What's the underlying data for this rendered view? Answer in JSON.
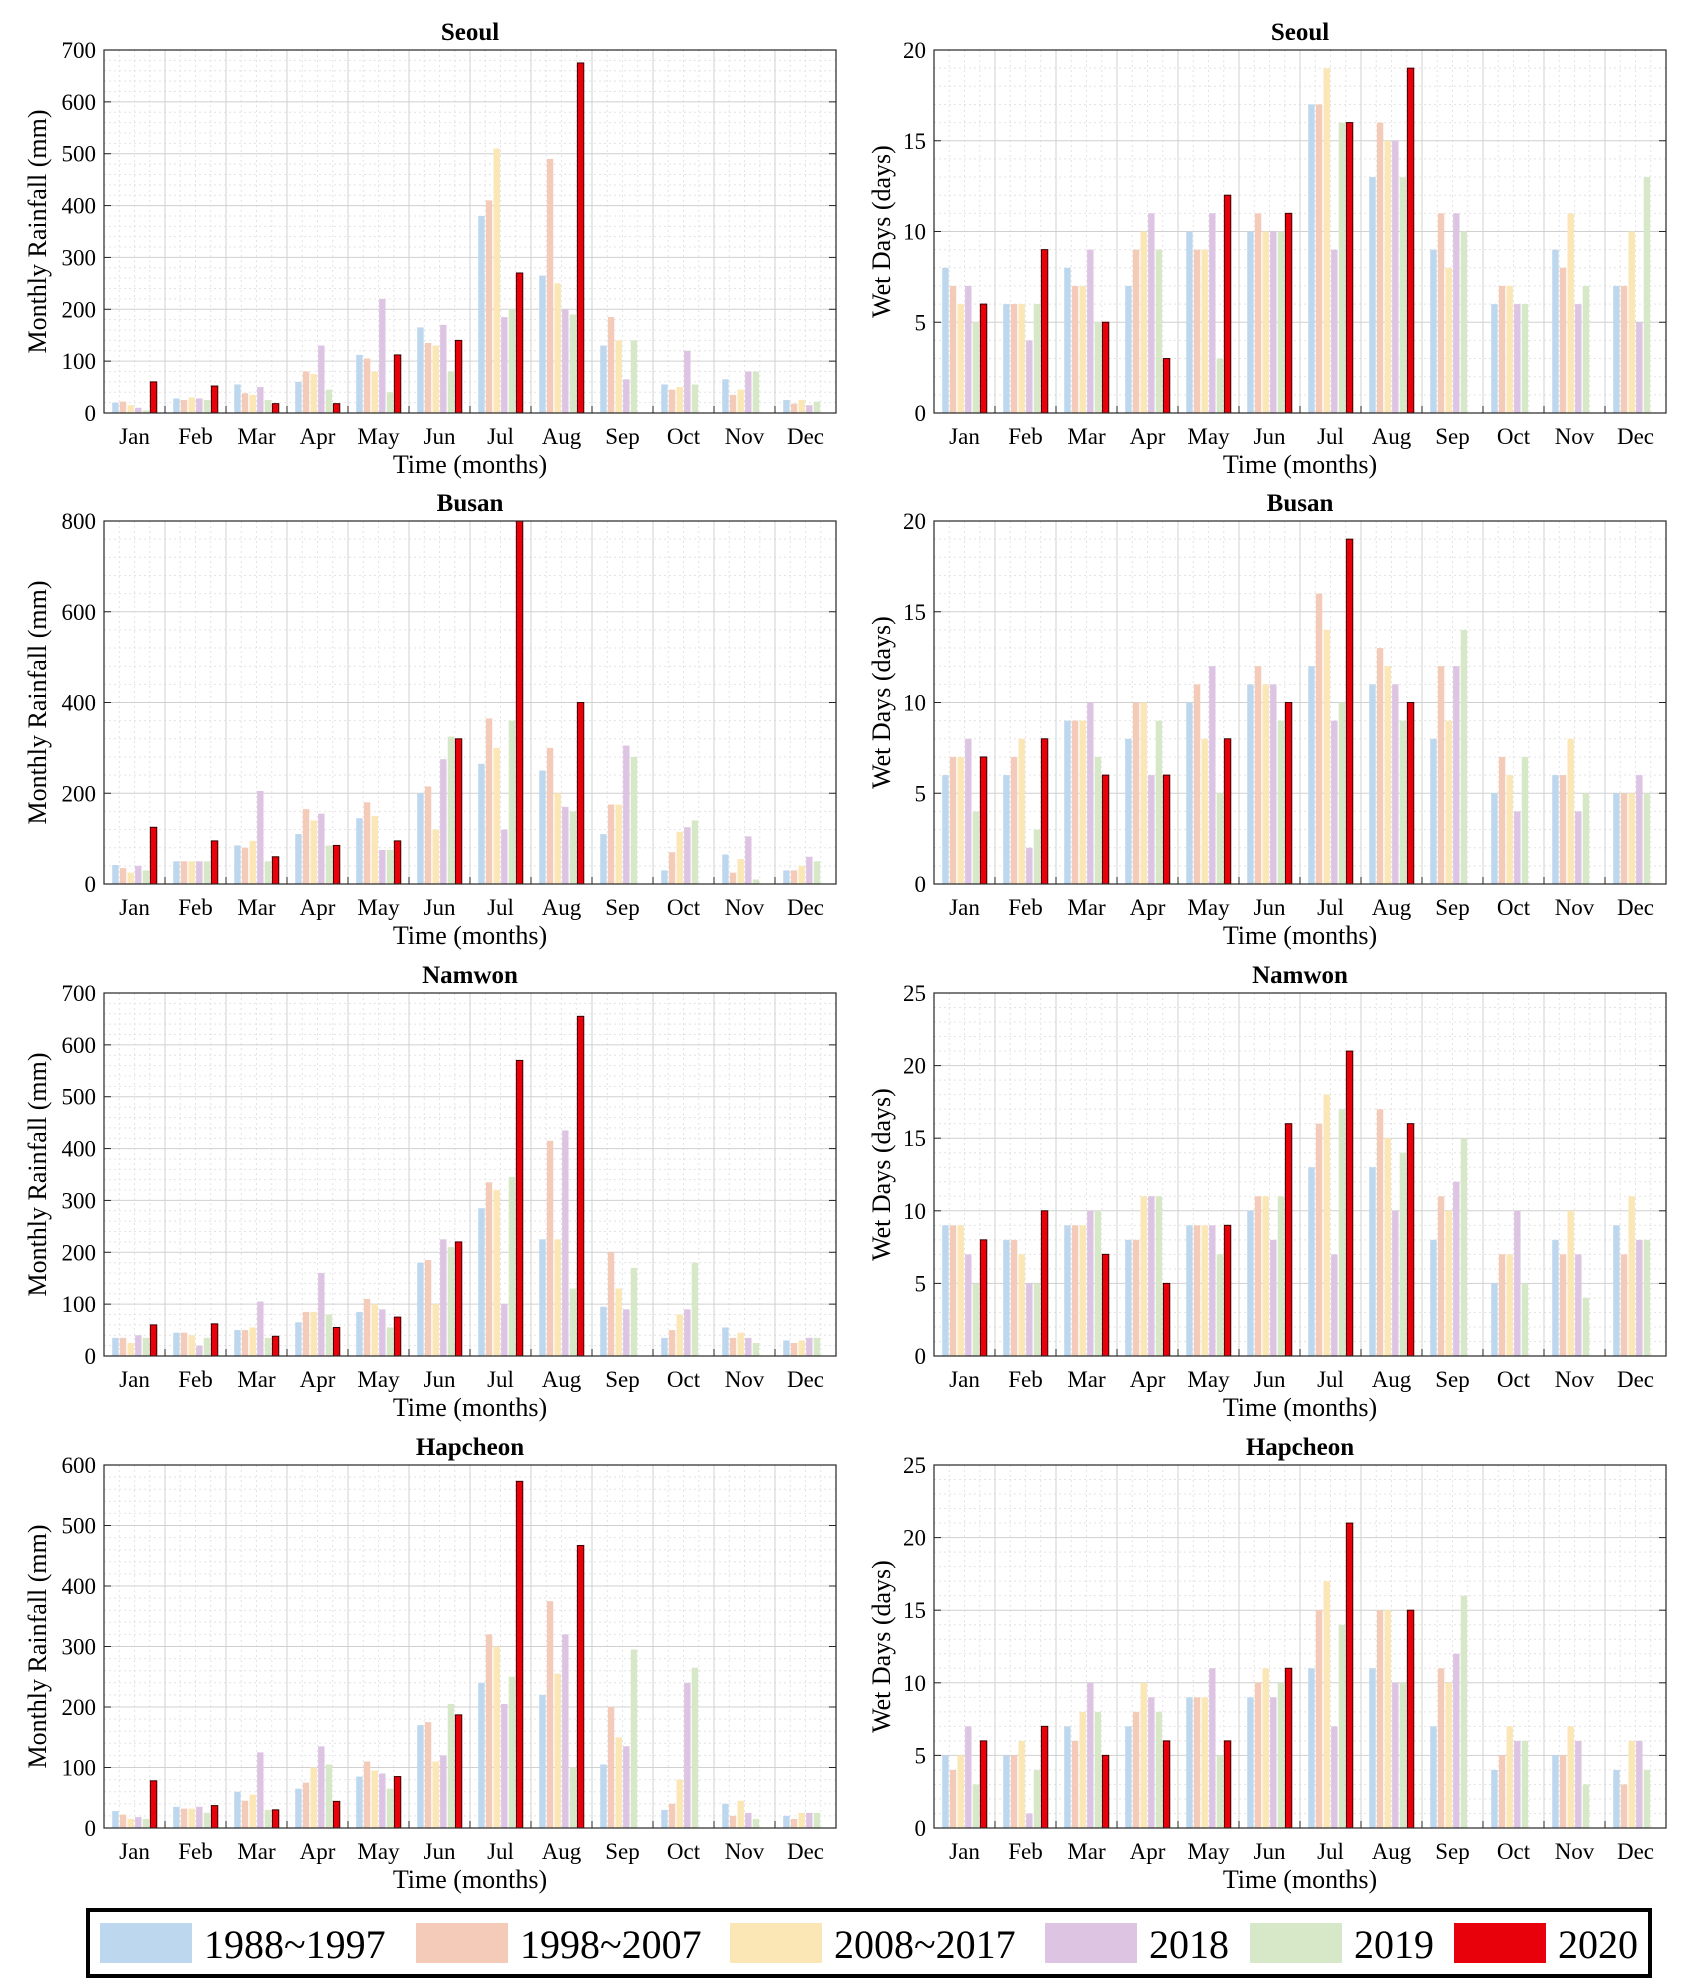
{
  "series_names": [
    "1988~1997",
    "1998~2007",
    "2008~2017",
    "2018",
    "2019",
    "2020"
  ],
  "series_colors": [
    "#bdd7ee",
    "#f4cbb8",
    "#fbe6b6",
    "#dcc4e2",
    "#d7e8c8",
    "#e8000b"
  ],
  "months": [
    "Jan",
    "Feb",
    "Mar",
    "Apr",
    "May",
    "Jun",
    "Jul",
    "Aug",
    "Sep",
    "Oct",
    "Nov",
    "Dec"
  ],
  "chart_data": [
    {
      "type": "bar",
      "title": "Seoul",
      "xlabel": "Time (months)",
      "ylabel": "Monthly Rainfall (mm)",
      "ylim": [
        0,
        700
      ],
      "yticks": [
        0,
        100,
        200,
        300,
        400,
        500,
        600,
        700
      ],
      "grid": true,
      "series": [
        {
          "name": "1988~1997",
          "values": [
            20,
            28,
            55,
            60,
            112,
            165,
            380,
            265,
            130,
            55,
            65,
            25
          ]
        },
        {
          "name": "1998~2007",
          "values": [
            22,
            25,
            38,
            80,
            105,
            135,
            410,
            490,
            185,
            45,
            35,
            18
          ]
        },
        {
          "name": "2008~2017",
          "values": [
            15,
            30,
            35,
            75,
            80,
            130,
            510,
            250,
            140,
            50,
            45,
            25
          ]
        },
        {
          "name": "2018",
          "values": [
            10,
            28,
            50,
            130,
            220,
            170,
            185,
            200,
            65,
            120,
            80,
            15
          ]
        },
        {
          "name": "2019",
          "values": [
            5,
            25,
            25,
            45,
            40,
            80,
            200,
            190,
            140,
            55,
            80,
            22
          ]
        },
        {
          "name": "2020",
          "values": [
            60,
            52,
            18,
            18,
            112,
            140,
            270,
            675,
            0,
            0,
            0,
            0
          ]
        }
      ]
    },
    {
      "type": "bar",
      "title": "Seoul",
      "xlabel": "Time (months)",
      "ylabel": "Wet Days (days)",
      "ylim": [
        0,
        20
      ],
      "yticks": [
        0,
        5,
        10,
        15,
        20
      ],
      "grid": true,
      "series": [
        {
          "name": "1988~1997",
          "values": [
            8,
            6,
            8,
            7,
            10,
            10,
            17,
            13,
            9,
            6,
            9,
            7
          ]
        },
        {
          "name": "1998~2007",
          "values": [
            7,
            6,
            7,
            9,
            9,
            11,
            17,
            16,
            11,
            7,
            8,
            7
          ]
        },
        {
          "name": "2008~2017",
          "values": [
            6,
            6,
            7,
            10,
            9,
            10,
            19,
            15,
            8,
            7,
            11,
            10
          ]
        },
        {
          "name": "2018",
          "values": [
            7,
            4,
            9,
            11,
            11,
            10,
            9,
            15,
            11,
            6,
            6,
            5
          ]
        },
        {
          "name": "2019",
          "values": [
            5,
            6,
            5,
            9,
            3,
            10,
            16,
            13,
            10,
            6,
            7,
            13
          ]
        },
        {
          "name": "2020",
          "values": [
            6,
            9,
            5,
            3,
            12,
            11,
            16,
            19,
            0,
            0,
            0,
            0
          ]
        }
      ]
    },
    {
      "type": "bar",
      "title": "Busan",
      "xlabel": "Time (months)",
      "ylabel": "Monthly Rainfall (mm)",
      "ylim": [
        0,
        800
      ],
      "yticks": [
        0,
        200,
        400,
        600,
        800
      ],
      "grid": true,
      "series": [
        {
          "name": "1988~1997",
          "values": [
            42,
            50,
            85,
            110,
            145,
            200,
            265,
            250,
            110,
            30,
            65,
            30
          ]
        },
        {
          "name": "1998~2007",
          "values": [
            35,
            50,
            80,
            165,
            180,
            215,
            365,
            300,
            175,
            70,
            25,
            30
          ]
        },
        {
          "name": "2008~2017",
          "values": [
            25,
            50,
            95,
            140,
            150,
            120,
            300,
            200,
            175,
            115,
            55,
            40
          ]
        },
        {
          "name": "2018",
          "values": [
            40,
            50,
            205,
            155,
            75,
            275,
            120,
            170,
            305,
            125,
            105,
            60
          ]
        },
        {
          "name": "2019",
          "values": [
            30,
            50,
            50,
            85,
            75,
            325,
            360,
            160,
            280,
            140,
            10,
            50
          ]
        },
        {
          "name": "2020",
          "values": [
            125,
            95,
            60,
            85,
            95,
            320,
            800,
            400,
            0,
            0,
            0,
            0
          ]
        }
      ]
    },
    {
      "type": "bar",
      "title": "Busan",
      "xlabel": "Time (months)",
      "ylabel": "Wet Days (days)",
      "ylim": [
        0,
        20
      ],
      "yticks": [
        0,
        5,
        10,
        15,
        20
      ],
      "grid": true,
      "series": [
        {
          "name": "1988~1997",
          "values": [
            6,
            6,
            9,
            8,
            10,
            11,
            12,
            11,
            8,
            5,
            6,
            5
          ]
        },
        {
          "name": "1998~2007",
          "values": [
            7,
            7,
            9,
            10,
            11,
            12,
            16,
            13,
            12,
            7,
            6,
            5
          ]
        },
        {
          "name": "2008~2017",
          "values": [
            7,
            8,
            9,
            10,
            8,
            11,
            14,
            12,
            9,
            6,
            8,
            5
          ]
        },
        {
          "name": "2018",
          "values": [
            8,
            2,
            10,
            6,
            12,
            11,
            9,
            11,
            12,
            4,
            4,
            6
          ]
        },
        {
          "name": "2019",
          "values": [
            4,
            3,
            7,
            9,
            5,
            9,
            10,
            9,
            14,
            7,
            5,
            5
          ]
        },
        {
          "name": "2020",
          "values": [
            7,
            8,
            6,
            6,
            8,
            10,
            19,
            10,
            0,
            0,
            0,
            0
          ]
        }
      ]
    },
    {
      "type": "bar",
      "title": "Namwon",
      "xlabel": "Time (months)",
      "ylabel": "Monthly Rainfall (mm)",
      "ylim": [
        0,
        700
      ],
      "yticks": [
        0,
        100,
        200,
        300,
        400,
        500,
        600,
        700
      ],
      "grid": true,
      "series": [
        {
          "name": "1988~1997",
          "values": [
            35,
            45,
            50,
            65,
            85,
            180,
            285,
            225,
            95,
            35,
            55,
            30
          ]
        },
        {
          "name": "1998~2007",
          "values": [
            35,
            45,
            50,
            85,
            110,
            185,
            335,
            415,
            200,
            50,
            35,
            25
          ]
        },
        {
          "name": "2008~2017",
          "values": [
            25,
            40,
            55,
            85,
            100,
            100,
            320,
            225,
            130,
            80,
            45,
            30
          ]
        },
        {
          "name": "2018",
          "values": [
            40,
            20,
            105,
            160,
            90,
            225,
            100,
            435,
            90,
            90,
            35,
            35
          ]
        },
        {
          "name": "2019",
          "values": [
            35,
            35,
            35,
            80,
            55,
            210,
            345,
            130,
            170,
            180,
            25,
            35
          ]
        },
        {
          "name": "2020",
          "values": [
            60,
            62,
            38,
            55,
            75,
            220,
            570,
            655,
            0,
            0,
            0,
            0
          ]
        }
      ]
    },
    {
      "type": "bar",
      "title": "Namwon",
      "xlabel": "Time (months)",
      "ylabel": "Wet Days (days)",
      "ylim": [
        0,
        25
      ],
      "yticks": [
        0,
        5,
        10,
        15,
        20,
        25
      ],
      "grid": true,
      "series": [
        {
          "name": "1988~1997",
          "values": [
            9,
            8,
            9,
            8,
            9,
            10,
            13,
            13,
            8,
            5,
            8,
            9
          ]
        },
        {
          "name": "1998~2007",
          "values": [
            9,
            8,
            9,
            8,
            9,
            11,
            16,
            17,
            11,
            7,
            7,
            7
          ]
        },
        {
          "name": "2008~2017",
          "values": [
            9,
            7,
            9,
            11,
            9,
            11,
            18,
            15,
            10,
            7,
            10,
            11
          ]
        },
        {
          "name": "2018",
          "values": [
            7,
            5,
            10,
            11,
            9,
            8,
            7,
            10,
            12,
            10,
            7,
            8
          ]
        },
        {
          "name": "2019",
          "values": [
            5,
            5,
            10,
            11,
            7,
            11,
            17,
            14,
            15,
            5,
            4,
            8
          ]
        },
        {
          "name": "2020",
          "values": [
            8,
            10,
            7,
            5,
            9,
            16,
            21,
            16,
            0,
            0,
            0,
            0
          ]
        }
      ]
    },
    {
      "type": "bar",
      "title": "Hapcheon",
      "xlabel": "Time (months)",
      "ylabel": "Monthly Rainfall (mm)",
      "ylim": [
        0,
        600
      ],
      "yticks": [
        0,
        100,
        200,
        300,
        400,
        500,
        600
      ],
      "grid": true,
      "series": [
        {
          "name": "1988~1997",
          "values": [
            28,
            35,
            60,
            65,
            85,
            170,
            240,
            220,
            105,
            30,
            40,
            20
          ]
        },
        {
          "name": "1998~2007",
          "values": [
            22,
            32,
            45,
            75,
            110,
            175,
            320,
            375,
            200,
            40,
            20,
            15
          ]
        },
        {
          "name": "2008~2017",
          "values": [
            15,
            32,
            55,
            100,
            95,
            110,
            300,
            255,
            150,
            80,
            45,
            25
          ]
        },
        {
          "name": "2018",
          "values": [
            18,
            35,
            125,
            135,
            90,
            120,
            205,
            320,
            135,
            240,
            25,
            25
          ]
        },
        {
          "name": "2019",
          "values": [
            15,
            25,
            30,
            105,
            65,
            205,
            250,
            100,
            295,
            265,
            15,
            25
          ]
        },
        {
          "name": "2020",
          "values": [
            78,
            37,
            30,
            44,
            85,
            187,
            573,
            467,
            0,
            0,
            0,
            0
          ]
        }
      ]
    },
    {
      "type": "bar",
      "title": "Hapcheon",
      "xlabel": "Time (months)",
      "ylabel": "Wet Days (days)",
      "ylim": [
        0,
        25
      ],
      "yticks": [
        0,
        5,
        10,
        15,
        20,
        25
      ],
      "grid": true,
      "series": [
        {
          "name": "1988~1997",
          "values": [
            5,
            5,
            7,
            7,
            9,
            9,
            11,
            11,
            7,
            4,
            5,
            4
          ]
        },
        {
          "name": "1998~2007",
          "values": [
            4,
            5,
            6,
            8,
            9,
            10,
            15,
            15,
            11,
            5,
            5,
            3
          ]
        },
        {
          "name": "2008~2017",
          "values": [
            5,
            6,
            8,
            10,
            9,
            11,
            17,
            15,
            10,
            7,
            7,
            6
          ]
        },
        {
          "name": "2018",
          "values": [
            7,
            1,
            10,
            9,
            11,
            9,
            7,
            10,
            12,
            6,
            6,
            6
          ]
        },
        {
          "name": "2019",
          "values": [
            3,
            4,
            8,
            8,
            5,
            10,
            14,
            10,
            16,
            6,
            3,
            4
          ]
        },
        {
          "name": "2020",
          "values": [
            6,
            7,
            5,
            6,
            6,
            11,
            21,
            15,
            0,
            0,
            0,
            0
          ]
        }
      ]
    }
  ]
}
